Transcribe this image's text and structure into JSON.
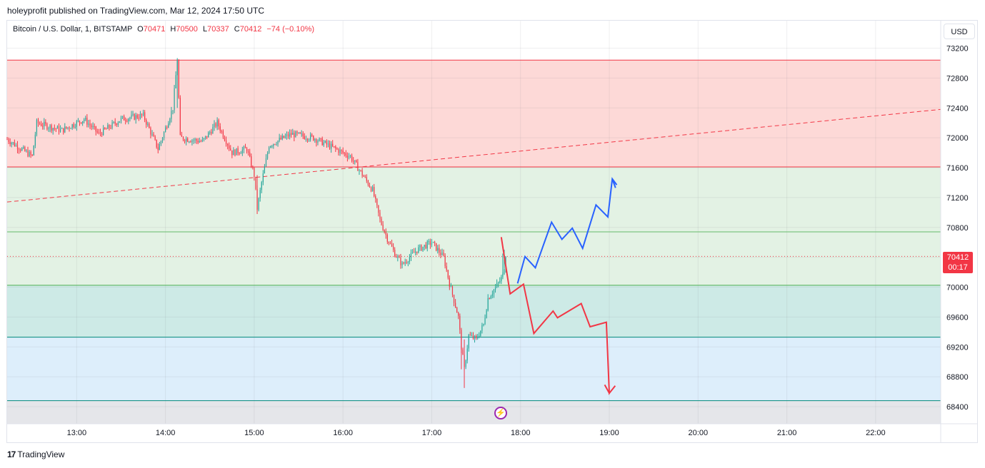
{
  "header": {
    "publisher_line": "holeyprofit published on TradingView.com, Mar 12, 2024 17:50 UTC"
  },
  "legend": {
    "symbol": "Bitcoin / U.S. Dollar, 1, BITSTAMP",
    "open_label": "O",
    "open_value": "70471",
    "high_label": "H",
    "high_value": "70500",
    "low_label": "L",
    "low_value": "70337",
    "close_label": "C",
    "close_value": "70412",
    "change": "−74 (−0.10%)"
  },
  "price_scale": {
    "currency": "USD",
    "last_price": "70412",
    "countdown": "00:17"
  },
  "footer": {
    "brand": "TradingView",
    "brand_icon": "tv-logo-icon"
  },
  "event_icon": "lightning-icon",
  "colors": {
    "up": "#26a69a",
    "down": "#f23645",
    "red_zone": "#fdd9d7",
    "green_zone": "#e3f2e4",
    "teal_zone": "#cdeae6",
    "blue_zone": "#ddeefb",
    "blue_path": "#2962ff",
    "red_path": "#f23645"
  },
  "chart_data": {
    "type": "candlestick",
    "symbol": "BTCUSD",
    "interval": "1",
    "x_ticks": [
      "13:00",
      "14:00",
      "15:00",
      "16:00",
      "17:00",
      "18:00",
      "19:00",
      "20:00",
      "21:00",
      "22:00"
    ],
    "y_ticks": [
      73200,
      72800,
      72400,
      72000,
      71600,
      71200,
      70800,
      70400,
      70000,
      69600,
      69200,
      68800,
      68400
    ],
    "ylim": [
      68230,
      73800
    ],
    "xlim": [
      "12:13",
      "22:44"
    ],
    "zones": [
      {
        "name": "red",
        "from": 71610,
        "to": 73040,
        "color": "#fdd9d7"
      },
      {
        "name": "green",
        "from": 70025,
        "to": 71610,
        "color": "#e3f2e4"
      },
      {
        "name": "teal",
        "from": 69330,
        "to": 70025,
        "color": "#cdeae6"
      },
      {
        "name": "blue",
        "from": 68480,
        "to": 69330,
        "color": "#ddeefb"
      }
    ],
    "levels": [
      {
        "price": 73040,
        "color": "#f23645"
      },
      {
        "price": 71610,
        "color": "#f23645"
      },
      {
        "price": 70740,
        "color": "#66bb6a"
      },
      {
        "price": 70025,
        "color": "#4caf50"
      },
      {
        "price": 69330,
        "color": "#00897b"
      },
      {
        "price": 68480,
        "color": "#00897b"
      }
    ],
    "last_price_line": 70412,
    "trendline": {
      "from": [
        "12:13",
        71140
      ],
      "to": [
        "22:44",
        72380
      ],
      "color": "#f23645",
      "style": "dashed"
    },
    "keypoints": [
      [
        "12:13",
        71980
      ],
      [
        "12:30",
        71750
      ],
      [
        "12:33",
        72200
      ],
      [
        "12:50",
        72100
      ],
      [
        "13:05",
        72250
      ],
      [
        "13:15",
        72050
      ],
      [
        "13:30",
        72250
      ],
      [
        "13:45",
        72300
      ],
      [
        "13:55",
        71850
      ],
      [
        "14:05",
        72400
      ],
      [
        "14:08",
        73050
      ],
      [
        "14:10",
        72000
      ],
      [
        "14:25",
        71950
      ],
      [
        "14:35",
        72200
      ],
      [
        "14:45",
        71800
      ],
      [
        "14:55",
        71850
      ],
      [
        "15:00",
        71500
      ],
      [
        "15:02",
        71050
      ],
      [
        "15:05",
        71400
      ],
      [
        "15:10",
        71900
      ],
      [
        "15:25",
        72050
      ],
      [
        "15:40",
        72000
      ],
      [
        "15:55",
        71850
      ],
      [
        "16:05",
        71750
      ],
      [
        "16:10",
        71600
      ],
      [
        "16:20",
        71300
      ],
      [
        "16:25",
        70900
      ],
      [
        "16:30",
        70650
      ],
      [
        "16:35",
        70450
      ],
      [
        "16:40",
        70300
      ],
      [
        "16:50",
        70500
      ],
      [
        "17:00",
        70600
      ],
      [
        "17:08",
        70400
      ],
      [
        "17:12",
        70050
      ],
      [
        "17:18",
        69600
      ],
      [
        "17:20",
        69200
      ],
      [
        "17:22",
        68900
      ],
      [
        "17:25",
        69350
      ],
      [
        "17:30",
        69300
      ],
      [
        "17:35",
        69500
      ],
      [
        "17:38",
        69850
      ],
      [
        "17:45",
        70050
      ],
      [
        "17:48",
        70150
      ],
      [
        "17:50",
        70412
      ]
    ],
    "projection_up": {
      "color": "#2962ff",
      "points": [
        [
          "17:58",
          70050
        ],
        [
          "18:03",
          70410
        ],
        [
          "18:10",
          70260
        ],
        [
          "18:21",
          70870
        ],
        [
          "18:28",
          70640
        ],
        [
          "18:35",
          70790
        ],
        [
          "18:42",
          70520
        ],
        [
          "18:51",
          71100
        ],
        [
          "18:59",
          70940
        ],
        [
          "19:02",
          71450
        ],
        [
          "19:05",
          71370
        ]
      ]
    },
    "projection_down": {
      "color": "#f23645",
      "points": [
        [
          "17:47",
          70670
        ],
        [
          "17:53",
          69910
        ],
        [
          "18:02",
          70040
        ],
        [
          "18:09",
          69380
        ],
        [
          "18:22",
          69680
        ],
        [
          "18:25",
          69590
        ],
        [
          "18:41",
          69780
        ],
        [
          "18:47",
          69470
        ],
        [
          "18:58",
          69530
        ],
        [
          "19:00",
          68580
        ],
        [
          "19:04",
          68680
        ]
      ]
    }
  }
}
